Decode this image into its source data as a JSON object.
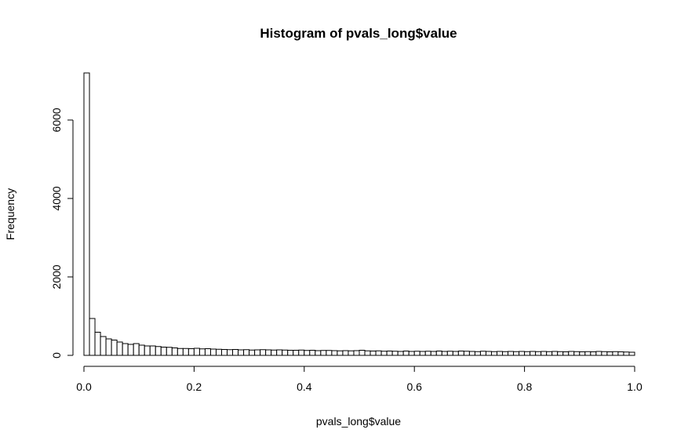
{
  "chart_data": {
    "type": "bar",
    "title": "Histogram of pvals_long$value",
    "xlabel": "pvals_long$value",
    "ylabel": "Frequency",
    "bin_width": 0.01,
    "xlim": [
      0,
      1
    ],
    "ylim": [
      0,
      7200
    ],
    "x_ticks": [
      0.0,
      0.2,
      0.4,
      0.6,
      0.8,
      1.0
    ],
    "x_tick_labels": [
      "0.0",
      "0.2",
      "0.4",
      "0.6",
      "0.8",
      "1.0"
    ],
    "y_ticks": [
      0,
      2000,
      4000,
      6000
    ],
    "y_tick_labels": [
      "0",
      "2000",
      "4000",
      "6000"
    ],
    "bar_fill": "#ffffff",
    "bar_stroke": "#000000",
    "grid": false,
    "legend": "none",
    "values": [
      7200,
      940,
      590,
      480,
      420,
      390,
      340,
      300,
      280,
      300,
      260,
      240,
      240,
      225,
      210,
      205,
      190,
      175,
      175,
      170,
      180,
      165,
      170,
      160,
      155,
      150,
      145,
      150,
      140,
      145,
      135,
      140,
      145,
      140,
      135,
      140,
      135,
      130,
      130,
      135,
      125,
      130,
      120,
      125,
      125,
      120,
      115,
      120,
      115,
      120,
      130,
      115,
      110,
      115,
      105,
      110,
      105,
      100,
      110,
      100,
      105,
      100,
      105,
      100,
      110,
      100,
      105,
      100,
      110,
      105,
      100,
      95,
      105,
      100,
      95,
      100,
      95,
      100,
      95,
      100,
      95,
      100,
      95,
      100,
      95,
      100,
      95,
      90,
      100,
      95,
      90,
      95,
      90,
      100,
      95,
      90,
      95,
      90,
      85,
      80
    ]
  }
}
